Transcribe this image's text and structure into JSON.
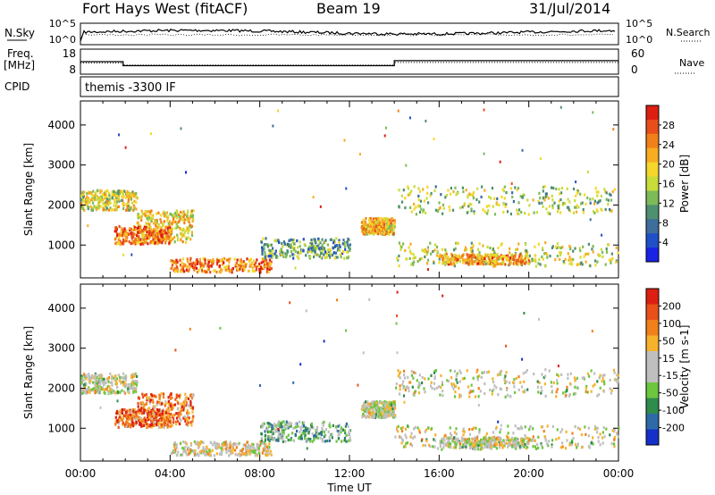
{
  "header": {
    "radar": "Fort Hays West (fitACF)",
    "beam": "Beam 19",
    "date": "31/Jul/2014"
  },
  "panels": {
    "nsky": {
      "label": "N.Sky",
      "ticks": [
        "10^5",
        "10^0"
      ],
      "right_label": "N.Search",
      "right_ticks": [
        "10^5",
        "10^0"
      ]
    },
    "freq": {
      "label_line1": "Freq.",
      "label_line2": "[MHz]",
      "ticks": [
        "18",
        "8"
      ],
      "right_label": "Nave",
      "right_ticks": [
        "60",
        "0"
      ]
    },
    "cpid": {
      "label": "CPID",
      "text": "themis -3300 IF"
    }
  },
  "x_axis": {
    "label": "Time UT",
    "ticks": [
      "00:00",
      "04:00",
      "08:00",
      "12:00",
      "16:00",
      "20:00",
      "00:00"
    ]
  },
  "chart_data": [
    {
      "type": "line",
      "title": "Freq. [MHz] / Nave",
      "x_units": "hours UT",
      "series": [
        {
          "name": "Freq.",
          "x": [
            0,
            1.9,
            1.9,
            14.0,
            14.0,
            24
          ],
          "y": [
            13,
            13,
            11.4,
            11.4,
            13.4,
            13.4
          ]
        },
        {
          "name": "Nave",
          "x": [
            0,
            1.9,
            1.9,
            14.0,
            14.0,
            24
          ],
          "y": [
            27,
            27,
            22,
            22,
            28,
            28
          ]
        }
      ],
      "ylim_freq": [
        8,
        18
      ],
      "ylim_nave": [
        0,
        60
      ]
    },
    {
      "type": "heatmap",
      "title": "Power [dB]",
      "xlabel": "Time UT",
      "ylabel": "Slant Range [km]",
      "xlim": [
        0,
        24
      ],
      "ylim": [
        180,
        4600
      ],
      "y_ticks": [
        1000,
        2000,
        3000,
        4000
      ],
      "colorbar": {
        "label": "Power [dB]",
        "ticks": [
          "4",
          "8",
          "12",
          "16",
          "20",
          "24",
          "28"
        ],
        "colors": [
          "#1a22e6",
          "#2050c8",
          "#3e6e9c",
          "#4e9070",
          "#7dbb58",
          "#c8dc3a",
          "#f5d62c",
          "#f7ac22",
          "#f2801a",
          "#e94e1a",
          "#dc1f12"
        ]
      },
      "regions": [
        {
          "t": [
            0,
            2.5
          ],
          "r": [
            1900,
            2400
          ],
          "level": 0.55
        },
        {
          "t": [
            2.5,
            5.0
          ],
          "r": [
            1100,
            1900
          ],
          "level": 0.6
        },
        {
          "t": [
            1.5,
            4.0
          ],
          "r": [
            1050,
            1500
          ],
          "level": 0.8
        },
        {
          "t": [
            4.0,
            8.5
          ],
          "r": [
            350,
            700
          ],
          "level": 0.78
        },
        {
          "t": [
            8.0,
            12.0
          ],
          "r": [
            700,
            1200
          ],
          "level": 0.35
        },
        {
          "t": [
            12.5,
            14.0
          ],
          "r": [
            1300,
            1700
          ],
          "level": 0.65
        },
        {
          "t": [
            14.0,
            24.0
          ],
          "r": [
            1800,
            2500
          ],
          "level": 0.45
        },
        {
          "t": [
            14.0,
            24.0
          ],
          "r": [
            500,
            1100
          ],
          "level": 0.5
        },
        {
          "t": [
            16.0,
            20.0
          ],
          "r": [
            550,
            800
          ],
          "level": 0.7
        }
      ]
    },
    {
      "type": "heatmap",
      "title": "Velocity [m s-1]",
      "xlabel": "Time UT",
      "ylabel": "Slant Range [km]",
      "xlim": [
        0,
        24
      ],
      "ylim": [
        180,
        4600
      ],
      "y_ticks": [
        1000,
        2000,
        3000,
        4000
      ],
      "colorbar": {
        "label": "Velocity [m s-1]",
        "ticks": [
          "200",
          "100",
          "50",
          "15",
          "-15",
          "-50",
          "-100",
          "-200"
        ],
        "colors": [
          "#1530c8",
          "#2e6aa8",
          "#2e8c4c",
          "#6cc63e",
          "#bfbfbf",
          "#bfbfbf",
          "#f7b22c",
          "#f2801a",
          "#e9501a",
          "#dc1f12"
        ]
      },
      "regions": [
        {
          "t": [
            0,
            2.5
          ],
          "r": [
            1900,
            2400
          ],
          "level": 0.5
        },
        {
          "t": [
            2.5,
            5.0
          ],
          "r": [
            1100,
            1900
          ],
          "level": 0.75
        },
        {
          "t": [
            1.5,
            4.0
          ],
          "r": [
            1050,
            1500
          ],
          "level": 0.8
        },
        {
          "t": [
            4.0,
            8.5
          ],
          "r": [
            350,
            700
          ],
          "level": 0.55
        },
        {
          "t": [
            8.0,
            12.0
          ],
          "r": [
            700,
            1200
          ],
          "level": 0.35
        },
        {
          "t": [
            12.5,
            14.0
          ],
          "r": [
            1300,
            1700
          ],
          "level": 0.5
        },
        {
          "t": [
            14.0,
            24.0
          ],
          "r": [
            1800,
            2500
          ],
          "level": 0.5
        },
        {
          "t": [
            14.0,
            24.0
          ],
          "r": [
            500,
            1100
          ],
          "level": 0.5
        },
        {
          "t": [
            16.0,
            20.0
          ],
          "r": [
            550,
            800
          ],
          "level": 0.5
        }
      ]
    }
  ]
}
